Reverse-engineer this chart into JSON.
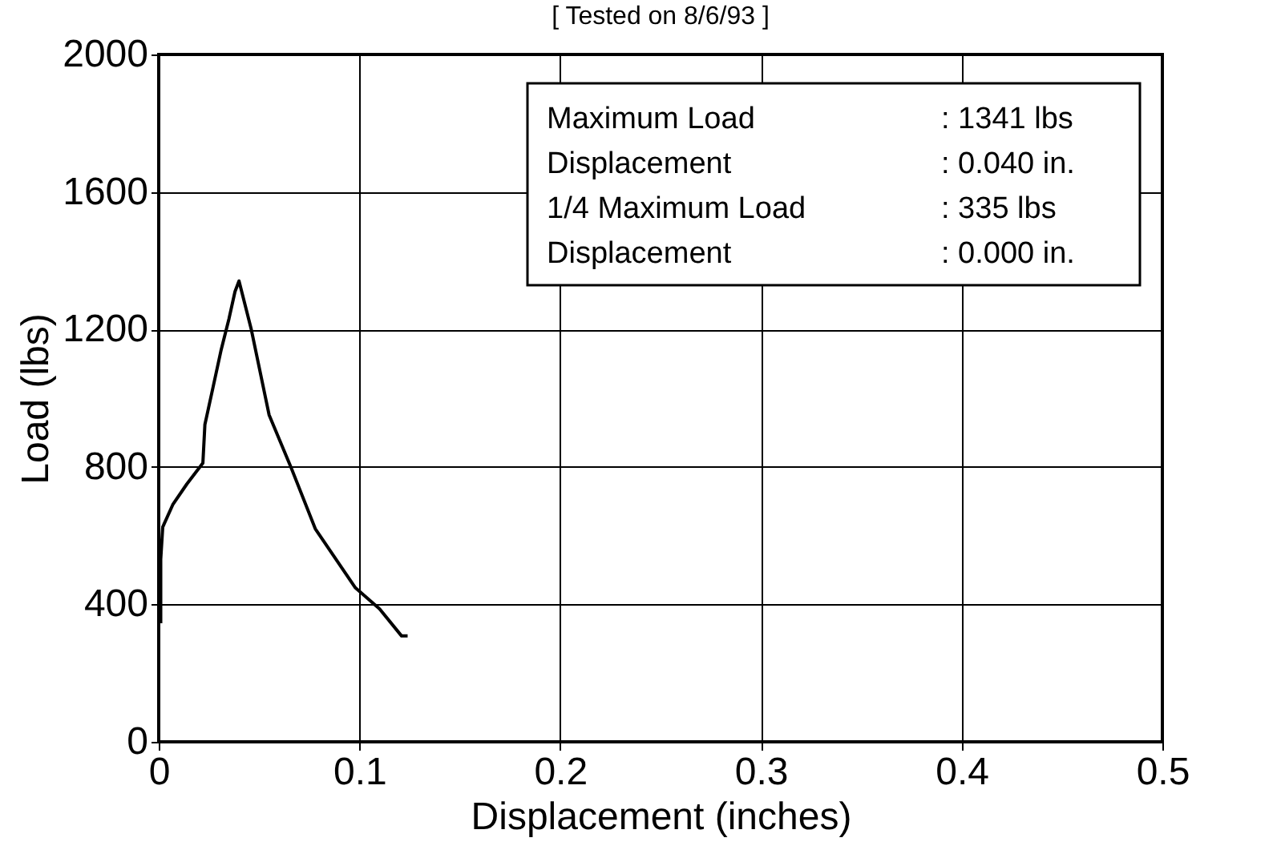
{
  "chart_data": {
    "type": "line",
    "title": "[ Tested on 8/6/93 ]",
    "xlabel": "Displacement (inches)",
    "ylabel": "Load (lbs)",
    "x": [
      0.001,
      0.001,
      0.001,
      0.002,
      0.007,
      0.014,
      0.022,
      0.023,
      0.027,
      0.031,
      0.035,
      0.038,
      0.04,
      0.046,
      0.055,
      0.066,
      0.078,
      0.098,
      0.11,
      0.121,
      0.124
    ],
    "series": [
      {
        "color": "#000000",
        "values": [
          345,
          424,
          531,
          625,
          690,
          750,
          811,
          923,
          1030,
          1138,
          1231,
          1310,
          1341,
          1203,
          951,
          797,
          620,
          448,
          387,
          308,
          308
        ]
      }
    ],
    "xlim": [
      0,
      0.5
    ],
    "xticks": [
      0,
      0.1,
      0.2,
      0.3,
      0.4,
      0.5
    ],
    "ylim": [
      0,
      2000
    ],
    "yticks": [
      0,
      400,
      800,
      1200,
      1600,
      2000
    ],
    "grid": true,
    "marker": "none",
    "line_style": "solid",
    "annotations": [
      "Maximum  Load",
      ": 1341 lbs",
      "Displacement",
      ": 0.040 in.",
      "1/4 Maximum Load",
      ": 335 lbs",
      "Displacement",
      ": 0.000 in."
    ]
  }
}
